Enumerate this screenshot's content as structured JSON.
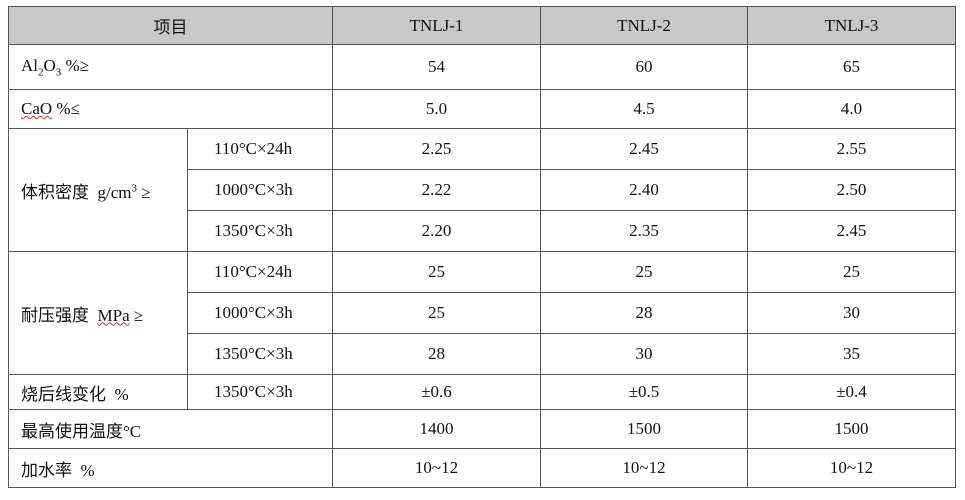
{
  "header": {
    "item": "项目",
    "grades": [
      "TNLJ-1",
      "TNLJ-2",
      "TNLJ-3"
    ]
  },
  "rows": [
    {
      "label": [
        "Al",
        "2",
        "O",
        "3",
        " %≥"
      ],
      "values": [
        "54",
        "60",
        "65"
      ]
    },
    {
      "label": [
        "CaO",
        " %≤"
      ],
      "values": [
        "5.0",
        "4.5",
        "4.0"
      ]
    },
    {
      "label": [
        "体积密度  g/cm",
        "3",
        " ≥"
      ],
      "conditions": [
        {
          "condition": "110°C×24h",
          "values": [
            "2.25",
            "2.45",
            "2.55"
          ]
        },
        {
          "condition": "1000°C×3h",
          "values": [
            "2.22",
            "2.40",
            "2.50"
          ]
        },
        {
          "condition": "1350°C×3h",
          "values": [
            "2.20",
            "2.35",
            "2.45"
          ]
        }
      ]
    },
    {
      "label": [
        "耐压强度  ",
        "MPa",
        " ≥"
      ],
      "conditions": [
        {
          "condition": "110°C×24h",
          "values": [
            "25",
            "25",
            "25"
          ]
        },
        {
          "condition": "1000°C×3h",
          "values": [
            "25",
            "28",
            "30"
          ]
        },
        {
          "condition": "1350°C×3h",
          "values": [
            "28",
            "30",
            "35"
          ]
        }
      ]
    },
    {
      "label": [
        "烧后线变化  %"
      ],
      "conditions": [
        {
          "condition": "1350°C×3h",
          "values": [
            "±0.6",
            "±0.5",
            "±0.4"
          ]
        }
      ]
    },
    {
      "label": [
        "最高使用温度°C"
      ],
      "values": [
        "1400",
        "1500",
        "1500"
      ]
    },
    {
      "label": [
        "加水率  %"
      ],
      "values": [
        "10~12",
        "10~12",
        "10~12"
      ]
    }
  ]
}
